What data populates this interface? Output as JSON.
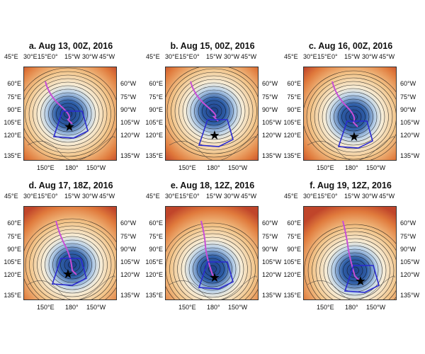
{
  "panels": [
    {
      "title": "a. Aug 13, 00Z, 2016"
    },
    {
      "title": "b. Aug 15, 00Z, 2016"
    },
    {
      "title": "c. Aug 16, 00Z, 2016"
    },
    {
      "title": "d. Aug 17, 18Z, 2016"
    },
    {
      "title": "e. Aug 18, 12Z, 2016"
    },
    {
      "title": "f. Aug 19, 12Z, 2016"
    }
  ],
  "top_labels": [
    "45°E",
    "30°E",
    "15°E",
    "0°",
    "15°W",
    "30°W",
    "45°W"
  ],
  "left_labels": [
    "60°E",
    "75°E",
    "90°E",
    "105°E",
    "120°E",
    "135°E"
  ],
  "right_labels": [
    "60°W",
    "75°W",
    "90°W",
    "105°W",
    "120°W",
    "135°W"
  ],
  "bottom_labels": [
    "150°E",
    "180°",
    "150°W"
  ],
  "colors": {
    "warm": "#e07a3c",
    "cool": "#2f5fa8",
    "track": "#c84fd8",
    "box": "#2a2ad0"
  }
}
